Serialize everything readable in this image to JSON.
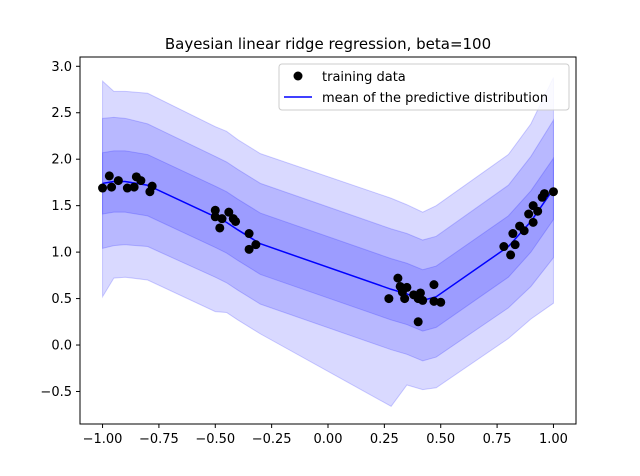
{
  "chart_data": {
    "type": "line",
    "title": "Bayesian linear ridge regression, beta=100",
    "xlabel": "",
    "ylabel": "",
    "xlim": [
      -1.1,
      1.1
    ],
    "ylim": [
      -0.85,
      3.1
    ],
    "xticks": [
      -1.0,
      -0.75,
      -0.5,
      -0.25,
      0.0,
      0.25,
      0.5,
      0.75,
      1.0
    ],
    "xtick_labels": [
      "−1.00",
      "−0.75",
      "−0.50",
      "−0.25",
      "0.00",
      "0.25",
      "0.50",
      "0.75",
      "1.00"
    ],
    "yticks": [
      -0.5,
      0.0,
      0.5,
      1.0,
      1.5,
      2.0,
      2.5,
      3.0
    ],
    "ytick_labels": [
      "−0.5",
      "0.0",
      "0.5",
      "1.0",
      "1.5",
      "2.0",
      "2.5",
      "3.0"
    ],
    "grid": false,
    "legend_position": "top-right",
    "legend": [
      {
        "label": "training data",
        "marker": "circle",
        "color": "#000000"
      },
      {
        "label": "mean of the predictive distribution",
        "marker": "line",
        "color": "#0000ff"
      }
    ],
    "colors": {
      "mean": "#0000ff",
      "band": "#0000ff",
      "points": "#000000"
    },
    "mean": {
      "name": "mean of the predictive distribution",
      "x": [
        -1.0,
        -0.95,
        -0.9,
        -0.8,
        -0.5,
        -0.45,
        -0.4,
        -0.3,
        0.28,
        0.35,
        0.42,
        0.48,
        0.8,
        0.9,
        1.0
      ],
      "y": [
        1.74,
        1.76,
        1.76,
        1.72,
        1.38,
        1.32,
        1.24,
        1.09,
        0.6,
        0.55,
        0.48,
        0.52,
        1.06,
        1.33,
        1.68
      ]
    },
    "bands": [
      {
        "label": "±1σ",
        "upper": [
          2.07,
          2.09,
          2.09,
          2.05,
          1.71,
          1.65,
          1.57,
          1.42,
          0.93,
          0.88,
          0.81,
          0.85,
          1.39,
          1.66,
          2.01
        ],
        "lower": [
          1.41,
          1.43,
          1.43,
          1.39,
          1.05,
          0.99,
          0.91,
          0.76,
          0.27,
          0.22,
          0.15,
          0.19,
          0.73,
          1.0,
          1.35
        ]
      },
      {
        "label": "±2σ",
        "upper": [
          2.44,
          2.45,
          2.44,
          2.38,
          2.03,
          1.97,
          1.89,
          1.74,
          1.25,
          1.2,
          1.13,
          1.17,
          1.72,
          2.03,
          2.42
        ],
        "lower": [
          1.04,
          1.07,
          1.08,
          1.06,
          0.73,
          0.67,
          0.59,
          0.44,
          -0.05,
          -0.1,
          -0.17,
          -0.13,
          0.4,
          0.63,
          0.94
        ]
      },
      {
        "label": "±3σ",
        "upper": [
          2.84,
          2.73,
          2.73,
          2.71,
          2.35,
          2.3,
          2.21,
          2.06,
          1.58,
          1.51,
          1.43,
          1.5,
          2.05,
          2.38,
          2.88
        ],
        "lower": [
          0.52,
          0.72,
          0.73,
          0.7,
          0.36,
          0.35,
          0.27,
          0.12,
          -0.66,
          -0.43,
          -0.48,
          -0.46,
          0.07,
          0.28,
          0.45
        ]
      }
    ],
    "training_data": {
      "name": "training data",
      "x": [
        -1.0,
        -0.97,
        -0.96,
        -0.93,
        -0.89,
        -0.86,
        -0.85,
        -0.83,
        -0.79,
        -0.78,
        -0.5,
        -0.5,
        -0.48,
        -0.47,
        -0.44,
        -0.42,
        -0.41,
        -0.35,
        -0.35,
        -0.32,
        0.27,
        0.31,
        0.32,
        0.33,
        0.34,
        0.35,
        0.38,
        0.4,
        0.4,
        0.41,
        0.42,
        0.47,
        0.47,
        0.5,
        0.78,
        0.81,
        0.82,
        0.83,
        0.85,
        0.87,
        0.89,
        0.91,
        0.91,
        0.93,
        0.95,
        0.96,
        1.0
      ],
      "y": [
        1.69,
        1.82,
        1.7,
        1.77,
        1.69,
        1.7,
        1.81,
        1.77,
        1.65,
        1.71,
        1.45,
        1.38,
        1.26,
        1.36,
        1.43,
        1.36,
        1.33,
        1.2,
        1.03,
        1.08,
        0.5,
        0.72,
        0.63,
        0.57,
        0.5,
        0.62,
        0.54,
        0.25,
        0.5,
        0.56,
        0.48,
        0.65,
        0.47,
        0.46,
        1.06,
        0.97,
        1.2,
        1.08,
        1.28,
        1.23,
        1.41,
        1.5,
        1.32,
        1.44,
        1.59,
        1.63,
        1.65
      ]
    }
  }
}
